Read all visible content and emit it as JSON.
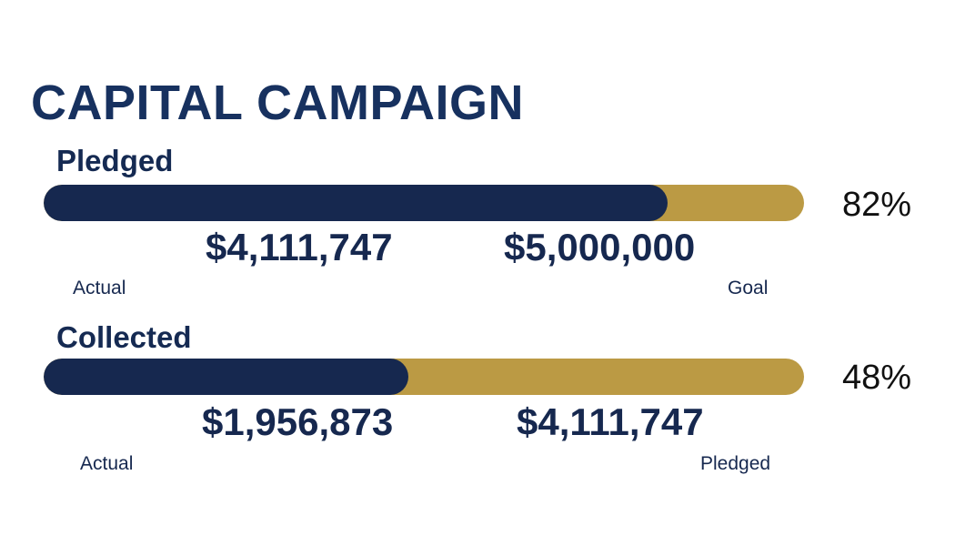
{
  "title": "CAPITAL CAMPAIGN",
  "colors": {
    "actual_fill": "#16284f",
    "track": "#bb9a44",
    "title": "#17315f"
  },
  "pledged": {
    "label": "Pledged",
    "percent_text": "82%",
    "fill_fraction": 0.82,
    "actual_amount": "$4,111,747",
    "target_amount": "$5,000,000",
    "actual_label": "Actual",
    "target_label": "Goal"
  },
  "collected": {
    "label": "Collected",
    "percent_text": "48%",
    "fill_fraction": 0.48,
    "actual_amount": "$1,956,873",
    "target_amount": "$4,111,747",
    "actual_label": "Actual",
    "target_label": "Pledged"
  }
}
